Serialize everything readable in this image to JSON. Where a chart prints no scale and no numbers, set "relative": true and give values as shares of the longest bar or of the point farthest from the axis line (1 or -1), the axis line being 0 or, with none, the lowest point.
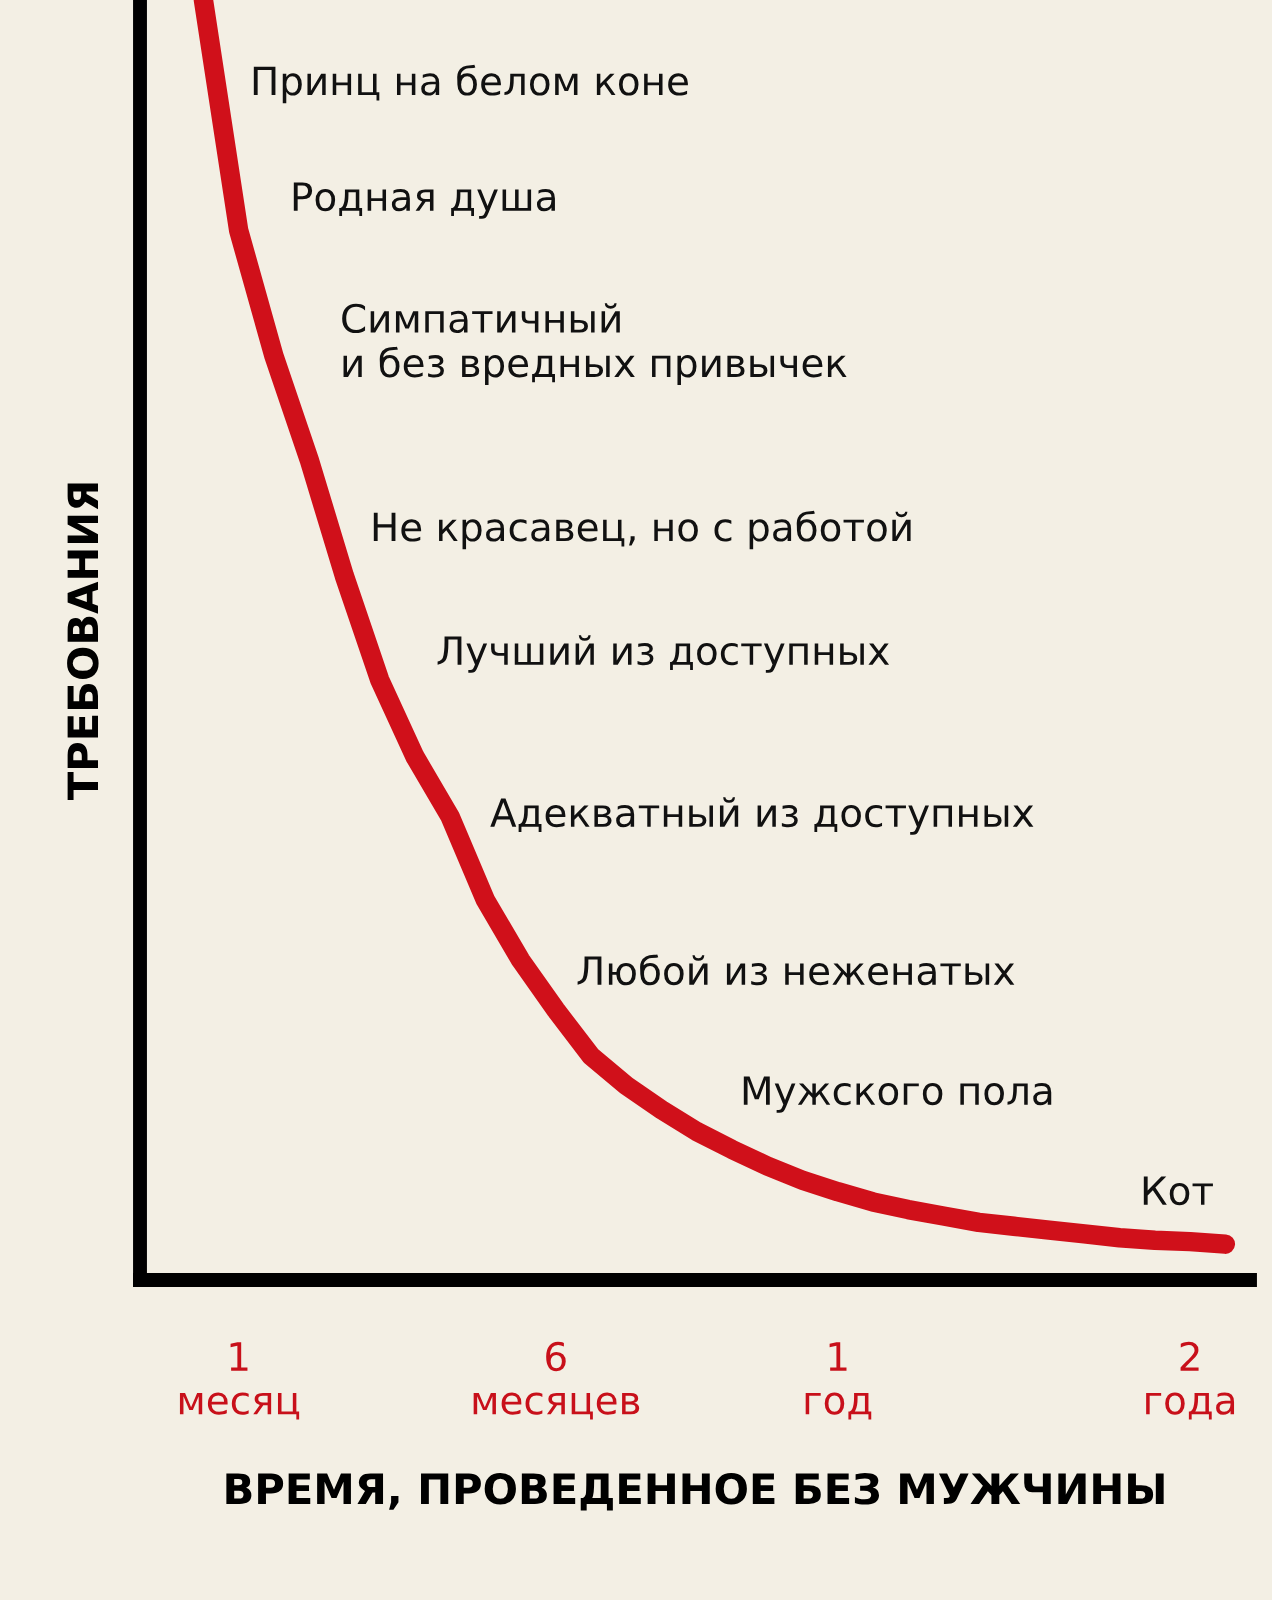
{
  "chart_data": {
    "type": "line",
    "relative": true,
    "xlabel": "ВРЕМЯ, ПРОВЕДЕННОЕ БЕЗ МУЖЧИНЫ",
    "ylabel": "ТРЕБОВАНИЯ",
    "categories": [
      null,
      "1\nмесяц",
      null,
      null,
      null,
      null,
      null,
      null,
      null,
      null,
      "6\nмесяцев",
      null,
      null,
      null,
      null,
      null,
      null,
      null,
      "1\nгод",
      null,
      null,
      null,
      null,
      null,
      null,
      null,
      null,
      null,
      "2\nгода",
      null
    ],
    "series": [
      {
        "color": "#d0101a",
        "values": [
          1.0,
          0.82,
          0.722,
          0.641,
          0.55,
          0.469,
          0.409,
          0.362,
          0.297,
          0.25,
          0.211,
          0.175,
          0.152,
          0.133,
          0.116,
          0.102,
          0.089,
          0.078,
          0.069,
          0.061,
          0.055,
          0.05,
          0.045,
          0.042,
          0.039,
          0.036,
          0.033,
          0.031,
          0.03,
          0.028
        ]
      }
    ],
    "annotations": [
      "Принц на белом коне",
      "Родная душа",
      "Симпатичный\nи без вредных привычек",
      "Не красавец, но с работой",
      "Лучший из доступных",
      "Адекватный из доступных",
      "Любой из неженатых",
      "Мужского пола",
      "Кот"
    ],
    "grid": false,
    "legend": false,
    "marker": "none",
    "line_style": "solid"
  }
}
